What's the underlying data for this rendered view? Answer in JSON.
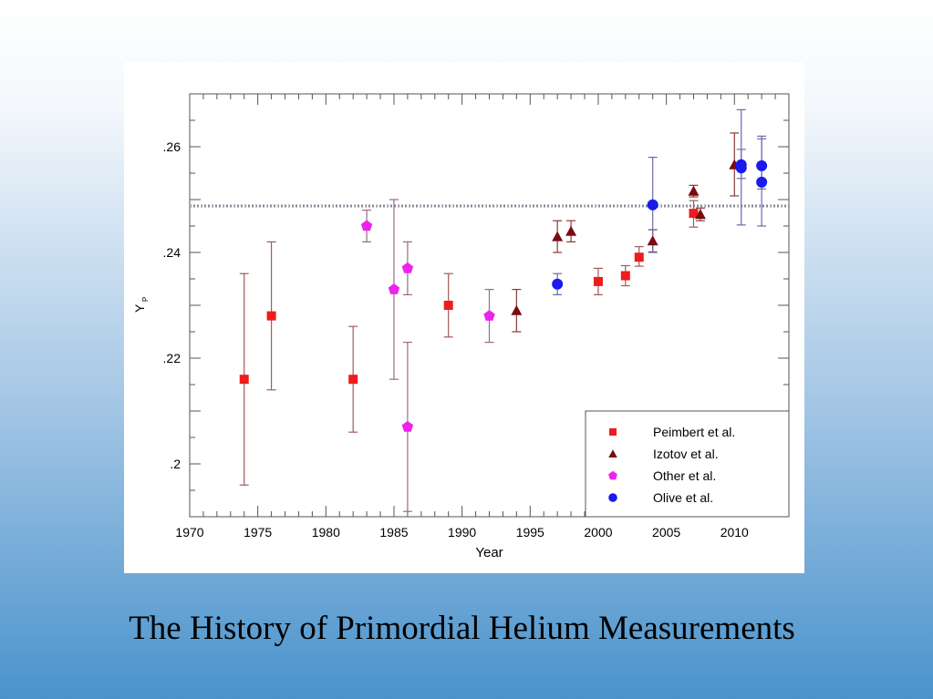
{
  "slide_title": "The History of Primordial Helium Measurements",
  "chart_data": {
    "type": "scatter",
    "title": "",
    "xlabel": "Year",
    "ylabel": "Y_P",
    "ylabel_main": "Y",
    "ylabel_sub": "P",
    "xlim": [
      1970,
      2014
    ],
    "ylim": [
      0.19,
      0.27
    ],
    "xticks": [
      1970,
      1975,
      1980,
      1985,
      1990,
      1995,
      2000,
      2005,
      2010
    ],
    "xtick_labels": [
      "1970",
      "1975",
      "1980",
      "1985",
      "1990",
      "1995",
      "2000",
      "2005",
      "2010"
    ],
    "yticks": [
      0.2,
      0.22,
      0.24,
      0.26
    ],
    "ytick_labels": [
      ".2",
      ".22",
      ".24",
      ".26"
    ],
    "reference_line": 0.2488,
    "legend_position": "bottom-right",
    "series": [
      {
        "name": "Peimbert et al.",
        "marker": "square",
        "color": "#ee1c1c",
        "points": [
          {
            "x": 1974,
            "y": 0.216,
            "lo": 0.196,
            "hi": 0.236
          },
          {
            "x": 1976,
            "y": 0.228,
            "lo": 0.214,
            "hi": 0.242
          },
          {
            "x": 1982,
            "y": 0.216,
            "lo": 0.206,
            "hi": 0.226
          },
          {
            "x": 1989,
            "y": 0.23,
            "lo": 0.224,
            "hi": 0.236
          },
          {
            "x": 2000,
            "y": 0.2345,
            "lo": 0.232,
            "hi": 0.237
          },
          {
            "x": 2002,
            "y": 0.2356,
            "lo": 0.2337,
            "hi": 0.2375
          },
          {
            "x": 2003,
            "y": 0.2391,
            "lo": 0.2374,
            "hi": 0.2411
          },
          {
            "x": 2007,
            "y": 0.2474,
            "lo": 0.2448,
            "hi": 0.2498
          }
        ]
      },
      {
        "name": "Izotov et al.",
        "marker": "triangle",
        "color": "#7a0c10",
        "points": [
          {
            "x": 1994,
            "y": 0.229,
            "lo": 0.225,
            "hi": 0.233
          },
          {
            "x": 1997,
            "y": 0.243,
            "lo": 0.24,
            "hi": 0.246
          },
          {
            "x": 1998,
            "y": 0.244,
            "lo": 0.242,
            "hi": 0.246
          },
          {
            "x": 2004,
            "y": 0.2422,
            "lo": 0.2401,
            "hi": 0.2443
          },
          {
            "x": 2007,
            "y": 0.2516,
            "lo": 0.2505,
            "hi": 0.2527
          },
          {
            "x": 2007.5,
            "y": 0.2472,
            "lo": 0.246,
            "hi": 0.2484
          },
          {
            "x": 2010,
            "y": 0.2566,
            "lo": 0.2507,
            "hi": 0.2626
          }
        ]
      },
      {
        "name": "Other et al.",
        "marker": "pentagon",
        "color": "#ee22ee",
        "points": [
          {
            "x": 1983,
            "y": 0.245,
            "lo": 0.242,
            "hi": 0.248
          },
          {
            "x": 1985,
            "y": 0.233,
            "lo": 0.216,
            "hi": 0.25
          },
          {
            "x": 1986,
            "y": 0.237,
            "lo": 0.232,
            "hi": 0.242
          },
          {
            "x": 1986,
            "y": 0.207,
            "lo": 0.191,
            "hi": 0.223
          },
          {
            "x": 1992,
            "y": 0.228,
            "lo": 0.223,
            "hi": 0.233
          }
        ]
      },
      {
        "name": "Olive et al.",
        "marker": "circle",
        "color": "#1a1aee",
        "points": [
          {
            "x": 1997,
            "y": 0.234,
            "lo": 0.232,
            "hi": 0.236
          },
          {
            "x": 2004,
            "y": 0.249,
            "lo": 0.24,
            "hi": 0.258
          },
          {
            "x": 2010.5,
            "y": 0.2566,
            "lo": 0.2452,
            "hi": 0.267
          },
          {
            "x": 2010.5,
            "y": 0.256,
            "lo": 0.254,
            "hi": 0.2595
          },
          {
            "x": 2012,
            "y": 0.2564,
            "lo": 0.252,
            "hi": 0.2615
          },
          {
            "x": 2012,
            "y": 0.2533,
            "lo": 0.245,
            "hi": 0.262
          }
        ]
      }
    ]
  }
}
